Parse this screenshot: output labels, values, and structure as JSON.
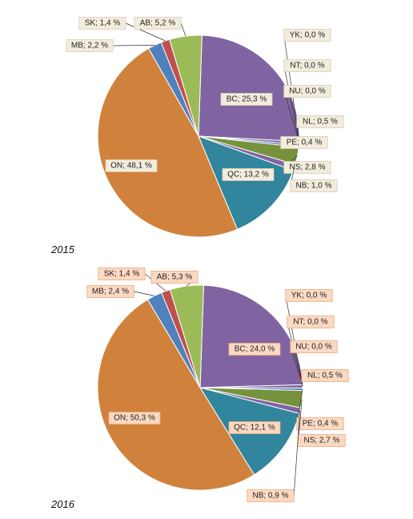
{
  "chart_data": [
    {
      "type": "pie",
      "title": "2015",
      "colors": {
        "BC": "#8064A2",
        "YK": "#4F81BD",
        "NT": "#C0504D",
        "NU": "#9BBB59",
        "NL": "#8064A2",
        "PE": "#4F81BD",
        "NS": "#76923C",
        "NB": "#8064A2",
        "QC": "#31859C",
        "ON": "#D0823C",
        "MB": "#4F81BD",
        "SK": "#C0504D",
        "AB": "#9BBB59"
      },
      "slices": [
        {
          "label": "BC",
          "value": 25.3,
          "text": "BC; 25,3 %"
        },
        {
          "label": "YK",
          "value": 0.0,
          "text": "YK; 0,0 %"
        },
        {
          "label": "NT",
          "value": 0.0,
          "text": "NT; 0,0 %"
        },
        {
          "label": "NU",
          "value": 0.0,
          "text": "NU; 0,0 %"
        },
        {
          "label": "NL",
          "value": 0.5,
          "text": "NL; 0,5 %"
        },
        {
          "label": "PE",
          "value": 0.4,
          "text": "PE; 0,4 %"
        },
        {
          "label": "NS",
          "value": 2.8,
          "text": "NS; 2,8 %"
        },
        {
          "label": "NB",
          "value": 1.0,
          "text": "NB; 1,0 %"
        },
        {
          "label": "QC",
          "value": 13.2,
          "text": "QC; 13,2 %"
        },
        {
          "label": "ON",
          "value": 48.1,
          "text": "ON; 48,1 %"
        },
        {
          "label": "MB",
          "value": 2.2,
          "text": "MB; 2,2 %"
        },
        {
          "label": "SK",
          "value": 1.4,
          "text": "SK; 1,4 %"
        },
        {
          "label": "AB",
          "value": 5.2,
          "text": "AB; 5,2 %"
        }
      ]
    },
    {
      "type": "pie",
      "title": "2016",
      "colors": {
        "BC": "#8064A2",
        "YK": "#4F81BD",
        "NT": "#C0504D",
        "NU": "#9BBB59",
        "NL": "#8064A2",
        "PE": "#4F81BD",
        "NS": "#76923C",
        "NB": "#8064A2",
        "QC": "#31859C",
        "ON": "#D0823C",
        "MB": "#4F81BD",
        "SK": "#C0504D",
        "AB": "#9BBB59"
      },
      "slices": [
        {
          "label": "BC",
          "value": 24.0,
          "text": "BC; 24,0 %"
        },
        {
          "label": "YK",
          "value": 0.0,
          "text": "YK; 0,0 %"
        },
        {
          "label": "NT",
          "value": 0.0,
          "text": "NT; 0,0 %"
        },
        {
          "label": "NU",
          "value": 0.0,
          "text": "NU; 0,0 %"
        },
        {
          "label": "NL",
          "value": 0.5,
          "text": "NL; 0,5 %"
        },
        {
          "label": "PE",
          "value": 0.4,
          "text": "PE; 0,4 %"
        },
        {
          "label": "NS",
          "value": 2.7,
          "text": "NS; 2,7 %"
        },
        {
          "label": "NB",
          "value": 0.9,
          "text": "NB; 0,9 %"
        },
        {
          "label": "QC",
          "value": 12.1,
          "text": "QC; 12,1 %"
        },
        {
          "label": "ON",
          "value": 50.3,
          "text": "ON; 50,3 %"
        },
        {
          "label": "MB",
          "value": 2.4,
          "text": "MB; 2,4 %"
        },
        {
          "label": "SK",
          "value": 1.4,
          "text": "SK; 1,4 %"
        },
        {
          "label": "AB",
          "value": 5.3,
          "text": "AB; 5,3 %"
        }
      ]
    }
  ],
  "label_styles": {
    "2015": {
      "box_fill": "#F2ECDD",
      "box_stroke": "#D9CFB6"
    },
    "2016": {
      "box_fill": "#FBD9C3",
      "box_stroke": "#F0A878"
    }
  }
}
